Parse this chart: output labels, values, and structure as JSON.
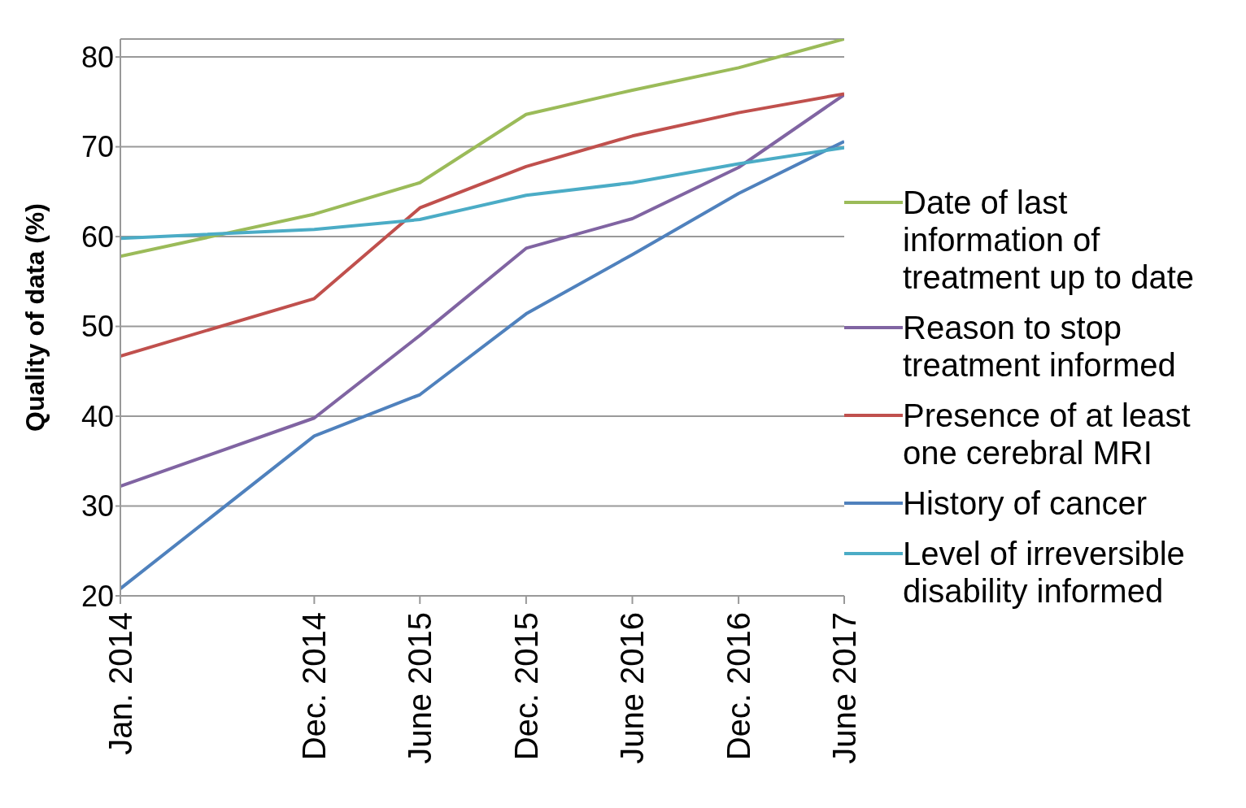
{
  "chart_data": {
    "type": "line",
    "ylabel": "Quality of data (%)",
    "x": [
      "2014-01",
      "2014-12",
      "2015-06",
      "2015-12",
      "2016-06",
      "2016-12",
      "2017-06"
    ],
    "xlim": [
      "2014-01",
      "2017-06"
    ],
    "xticks": [
      {
        "value": "2014-01",
        "label": "Jan. 2014"
      },
      {
        "value": "2014-12",
        "label": "Dec. 2014"
      },
      {
        "value": "2015-06",
        "label": "June 2015"
      },
      {
        "value": "2015-12",
        "label": "Dec. 2015"
      },
      {
        "value": "2016-06",
        "label": "June 2016"
      },
      {
        "value": "2016-12",
        "label": "Dec. 2016"
      },
      {
        "value": "2017-06",
        "label": "June 2017"
      }
    ],
    "ylim": [
      20,
      82
    ],
    "yticks": [
      20,
      30,
      40,
      50,
      60,
      70,
      80
    ],
    "grid": "y",
    "legend": "right",
    "marker": "none",
    "line_style": "solid",
    "series": [
      {
        "name": "Date of last information of treatment up to date",
        "color": "#9bbb59",
        "values": [
          57.8,
          62.5,
          66,
          73.6,
          76.3,
          78.8,
          82
        ]
      },
      {
        "name": "Reason to stop treatment informed",
        "color": "#8064a2",
        "values": [
          32.2,
          39.8,
          49,
          58.7,
          62,
          67.7,
          75.8
        ]
      },
      {
        "name": "Presence of at least one cerebral MRI",
        "color": "#c0504d",
        "values": [
          46.7,
          53.1,
          63.2,
          67.8,
          71.2,
          73.8,
          75.9
        ]
      },
      {
        "name": "History of cancer",
        "color": "#4f81bd",
        "values": [
          20.8,
          37.8,
          42.4,
          51.4,
          58,
          64.8,
          70.6
        ]
      },
      {
        "name": "Level of irreversible disability informed",
        "color": "#4bacc6",
        "values": [
          59.8,
          60.8,
          61.9,
          64.6,
          66,
          68.1,
          69.9
        ]
      }
    ]
  }
}
